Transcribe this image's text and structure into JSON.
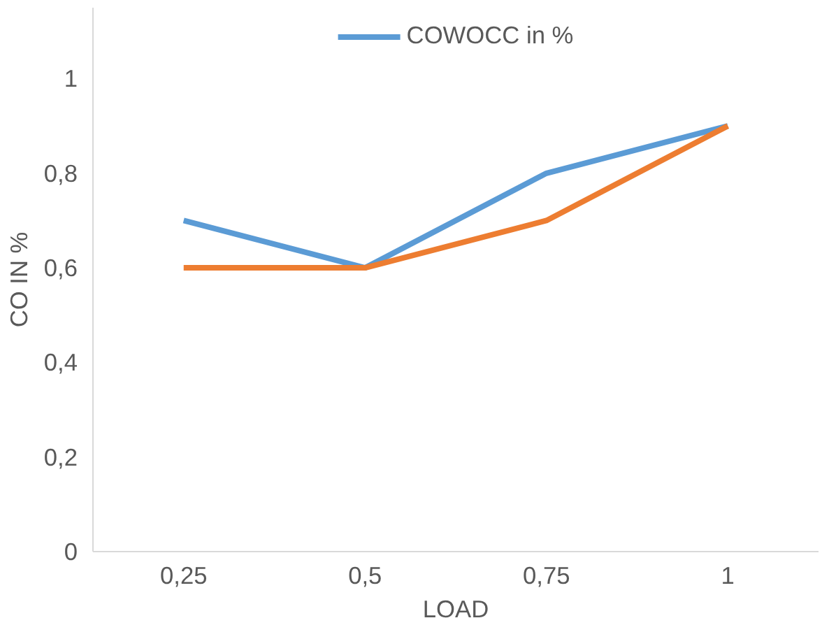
{
  "chart_data": {
    "type": "line",
    "xlabel": "LOAD",
    "ylabel": "CO IN %",
    "categories": [
      "0,25",
      "0,5",
      "0,75",
      "1"
    ],
    "series": [
      {
        "name": "COWOCC in %",
        "color": "#5b9bd5",
        "values": [
          0.7,
          0.6,
          0.8,
          0.9
        ]
      },
      {
        "color": "#ed7d31",
        "values": [
          0.6,
          0.6,
          0.7,
          0.9
        ]
      }
    ],
    "ylim": [
      0,
      1.15
    ],
    "yticks": [
      0,
      {
        "value": 0.2,
        "label": "0,2"
      },
      {
        "value": 0.4,
        "label": "0,4"
      },
      {
        "value": 0.6,
        "label": "0,6"
      },
      {
        "value": 0.8,
        "label": "0,8"
      },
      1
    ],
    "grid": false,
    "legend": "top",
    "marker": "none",
    "line_style": "solid"
  }
}
